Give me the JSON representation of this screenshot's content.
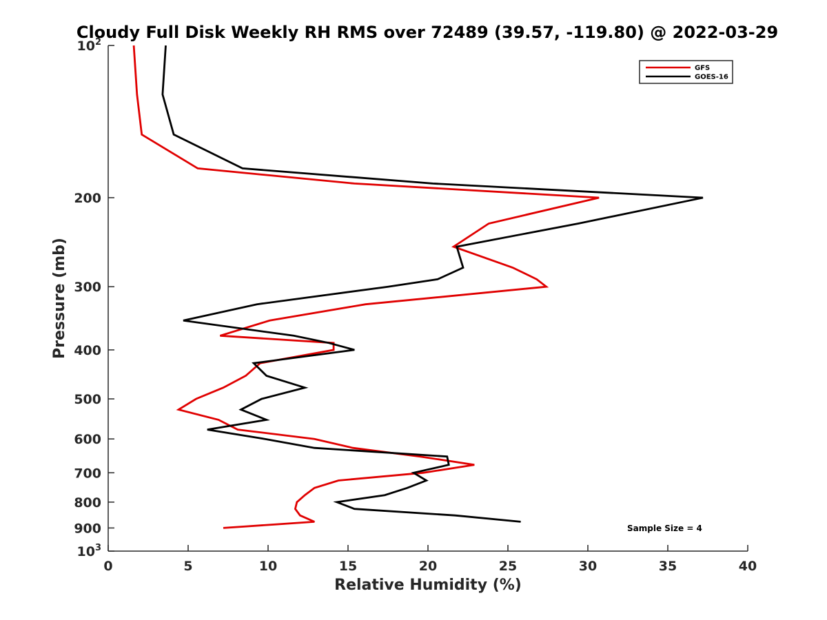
{
  "chart_data": {
    "type": "line",
    "title": "Cloudy Full Disk Weekly RH RMS over 72489 (39.57, -119.80) @ 2022-03-29",
    "xlabel": "Relative Humidity (%)",
    "ylabel": "Pressure (mb)",
    "xlim": [
      0,
      40
    ],
    "ylim": [
      100,
      1000
    ],
    "y_scale": "log",
    "y_reversed": true,
    "grid": false,
    "legend_position": "top-right",
    "x_ticks": [
      0,
      5,
      10,
      15,
      20,
      25,
      30,
      35,
      40
    ],
    "y_ticks": [
      100,
      200,
      300,
      400,
      500,
      600,
      700,
      800,
      900,
      1000
    ],
    "y_tick_labels": {
      "100": {
        "base": "10",
        "exp": "2"
      },
      "200": "200",
      "300": "300",
      "400": "400",
      "500": "500",
      "600": "600",
      "700": "700",
      "800": "800",
      "900": "900",
      "1000": {
        "base": "10",
        "exp": "3"
      }
    },
    "series": [
      {
        "name": "GFS",
        "color": "#e00000",
        "points": [
          [
            1.6,
            100
          ],
          [
            1.8,
            125
          ],
          [
            2.1,
            150
          ],
          [
            5.6,
            175
          ],
          [
            15.4,
            187.5
          ],
          [
            30.7,
            200
          ],
          [
            23.8,
            225
          ],
          [
            21.6,
            250
          ],
          [
            25.3,
            275
          ],
          [
            26.8,
            290
          ],
          [
            27.4,
            300
          ],
          [
            16.1,
            325
          ],
          [
            10.1,
            350
          ],
          [
            7.0,
            375
          ],
          [
            14.1,
            387.5
          ],
          [
            14.1,
            400
          ],
          [
            9.5,
            425
          ],
          [
            8.6,
            450
          ],
          [
            7.2,
            475
          ],
          [
            5.5,
            500
          ],
          [
            4.4,
            525
          ],
          [
            6.9,
            550
          ],
          [
            8.1,
            575
          ],
          [
            12.9,
            600
          ],
          [
            15.3,
            625
          ],
          [
            19.5,
            650
          ],
          [
            22.9,
            675
          ],
          [
            19.7,
            700
          ],
          [
            14.4,
            725
          ],
          [
            12.9,
            750
          ],
          [
            12.3,
            775
          ],
          [
            11.8,
            800
          ],
          [
            11.7,
            825
          ],
          [
            12.0,
            850
          ],
          [
            12.9,
            875
          ],
          [
            7.2,
            900
          ]
        ]
      },
      {
        "name": "GOES-16",
        "color": "#000000",
        "points": [
          [
            3.6,
            100
          ],
          [
            3.4,
            125
          ],
          [
            4.1,
            150
          ],
          [
            8.4,
            175
          ],
          [
            20.3,
            187.5
          ],
          [
            37.2,
            200
          ],
          [
            29.4,
            225
          ],
          [
            21.8,
            250
          ],
          [
            22.2,
            275
          ],
          [
            20.6,
            290
          ],
          [
            17.5,
            300
          ],
          [
            9.3,
            325
          ],
          [
            4.7,
            350
          ],
          [
            11.6,
            375
          ],
          [
            13.8,
            387.5
          ],
          [
            15.4,
            400
          ],
          [
            9.1,
            425
          ],
          [
            9.9,
            450
          ],
          [
            12.3,
            475
          ],
          [
            9.6,
            500
          ],
          [
            8.3,
            525
          ],
          [
            9.9,
            550
          ],
          [
            6.2,
            575
          ],
          [
            9.8,
            600
          ],
          [
            12.9,
            625
          ],
          [
            21.2,
            650
          ],
          [
            21.3,
            675
          ],
          [
            19.1,
            700
          ],
          [
            19.9,
            725
          ],
          [
            18.7,
            750
          ],
          [
            17.3,
            775
          ],
          [
            14.3,
            800
          ],
          [
            15.4,
            825
          ],
          [
            21.7,
            850
          ],
          [
            25.8,
            875
          ]
        ]
      }
    ],
    "legend": [
      {
        "label": "GFS",
        "color": "#e00000"
      },
      {
        "label": "GOES-16",
        "color": "#000000"
      }
    ],
    "annotation": "Sample Size = 4"
  }
}
